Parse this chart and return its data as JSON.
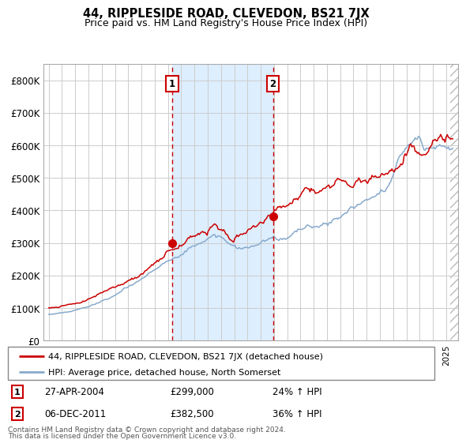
{
  "title": "44, RIPPLESIDE ROAD, CLEVEDON, BS21 7JX",
  "subtitle": "Price paid vs. HM Land Registry's House Price Index (HPI)",
  "legend_line1": "44, RIPPLESIDE ROAD, CLEVEDON, BS21 7JX (detached house)",
  "legend_line2": "HPI: Average price, detached house, North Somerset",
  "footnote1": "Contains HM Land Registry data © Crown copyright and database right 2024.",
  "footnote2": "This data is licensed under the Open Government Licence v3.0.",
  "transaction1_date": "27-APR-2004",
  "transaction1_price": "£299,000",
  "transaction1_hpi": "24% ↑ HPI",
  "transaction2_date": "06-DEC-2011",
  "transaction2_price": "£382,500",
  "transaction2_hpi": "36% ↑ HPI",
  "red_line_color": "#cc0000",
  "blue_line_color": "#88aacc",
  "shading_color": "#ddeeff",
  "dashed_line_color": "#cc0000",
  "background_color": "#ffffff",
  "grid_color": "#cccccc",
  "ylim": [
    0,
    850000
  ],
  "yticks": [
    0,
    100000,
    200000,
    300000,
    400000,
    500000,
    600000,
    700000,
    800000
  ],
  "ytick_labels": [
    "£0",
    "£100K",
    "£200K",
    "£300K",
    "£400K",
    "£500K",
    "£600K",
    "£700K",
    "£800K"
  ],
  "transaction1_x": 2004.32,
  "transaction1_y": 299000,
  "transaction2_x": 2011.92,
  "transaction2_y": 382500,
  "xlim_left": 1994.6,
  "xlim_right": 2025.9
}
